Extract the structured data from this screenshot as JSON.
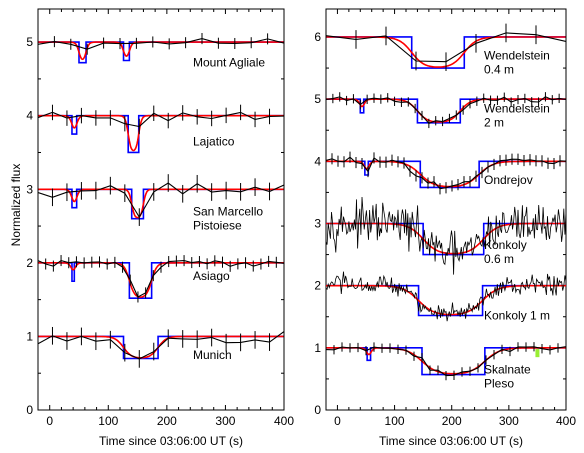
{
  "chart_data": [
    {
      "type": "line",
      "panel": "left",
      "xlabel": "Time since 03:06:00 UT (s)",
      "ylabel": "Normalized flux",
      "xlim": [
        -20,
        400
      ],
      "ylim": [
        0,
        5.45
      ],
      "xticks": [
        0,
        100,
        200,
        300,
        400
      ],
      "yticks": [
        0,
        1,
        2,
        3,
        4,
        5
      ],
      "colors": {
        "data": "#000000",
        "model_step": "#0000ff",
        "model_smooth": "#ff0000"
      },
      "observatories": [
        {
          "label": [
            "Mount Agliale"
          ],
          "baseline": 5,
          "events": [
            {
              "start": 50,
              "end": 62,
              "depth": 0.28
            },
            {
              "start": 126,
              "end": 136,
              "depth": 0.25
            }
          ],
          "bins": 15,
          "noise": 0.03,
          "seed": 11
        },
        {
          "label": [
            "Lajatico"
          ],
          "baseline": 4,
          "events": [
            {
              "start": 38,
              "end": 46,
              "depth": 0.25
            },
            {
              "start": 134,
              "end": 152,
              "depth": 0.5
            }
          ],
          "bins": 17,
          "noise": 0.05,
          "seed": 23
        },
        {
          "label": [
            "San Marcello",
            "Pistoiese"
          ],
          "baseline": 3,
          "events": [
            {
              "start": 38,
              "end": 46,
              "depth": 0.25
            },
            {
              "start": 140,
              "end": 160,
              "depth": 0.4
            }
          ],
          "bins": 17,
          "noise": 0.06,
          "seed": 37
        },
        {
          "label": [
            "Asiago"
          ],
          "baseline": 2,
          "events": [
            {
              "start": 38,
              "end": 42,
              "depth": 0.25
            },
            {
              "start": 136,
              "end": 174,
              "depth": 0.48
            }
          ],
          "bins": 32,
          "noise": 0.03,
          "seed": 41
        },
        {
          "label": [
            "Munich"
          ],
          "baseline": 1,
          "events": [
            {
              "start": 126,
              "end": 185,
              "depth": 0.3
            }
          ],
          "bins": 17,
          "noise": 0.06,
          "seed": 53
        }
      ]
    },
    {
      "type": "line",
      "panel": "right",
      "xlabel": "Time since 03:06:00 UT (s)",
      "ylabel": "",
      "xlim": [
        -20,
        400
      ],
      "ylim": [
        0,
        6.45
      ],
      "xticks": [
        0,
        100,
        200,
        300,
        400
      ],
      "yticks": [
        0,
        1,
        2,
        3,
        4,
        5,
        6
      ],
      "colors": {
        "data": "#000000",
        "model_step": "#0000ff",
        "model_smooth": "#ff0000",
        "marker": "#99ee33"
      },
      "observatories": [
        {
          "label": [
            "Wendelstein",
            "0.4 m"
          ],
          "baseline": 6,
          "events": [
            {
              "start": 130,
              "end": 222,
              "depth": 0.5
            }
          ],
          "bins": 8,
          "noise": 0.08,
          "seed": 61
        },
        {
          "label": [
            "Wendelstein",
            "2 m"
          ],
          "baseline": 5,
          "events": [
            {
              "start": 40,
              "end": 46,
              "depth": 0.22
            },
            {
              "start": 140,
              "end": 215,
              "depth": 0.38
            }
          ],
          "bins": 35,
          "noise": 0.03,
          "seed": 71
        },
        {
          "label": [
            "Ondrejov"
          ],
          "baseline": 4,
          "events": [
            {
              "start": 48,
              "end": 54,
              "depth": 0.22
            },
            {
              "start": 145,
              "end": 248,
              "depth": 0.42
            }
          ],
          "bins": 40,
          "noise": 0.04,
          "seed": 83
        },
        {
          "label": [
            "Konkoly",
            "0.6 m"
          ],
          "baseline": 3,
          "events": [
            {
              "start": 150,
              "end": 256,
              "depth": 0.5
            }
          ],
          "bins": 220,
          "noise": 0.2,
          "seed": 97
        },
        {
          "label": [
            "Konkoly 1 m"
          ],
          "baseline": 2,
          "events": [
            {
              "start": 142,
              "end": 254,
              "depth": 0.48
            }
          ],
          "bins": 220,
          "noise": 0.1,
          "seed": 103
        },
        {
          "label": [
            "Skalnate",
            "Pleso"
          ],
          "baseline": 1,
          "events": [
            {
              "start": 52,
              "end": 58,
              "depth": 0.2
            },
            {
              "start": 148,
              "end": 258,
              "depth": 0.43
            }
          ],
          "bins": 30,
          "noise": 0.03,
          "seed": 109
        },
        {
          "marker": {
            "x": 350,
            "y_from": 0.85,
            "y_to": 0.98
          }
        }
      ]
    }
  ]
}
